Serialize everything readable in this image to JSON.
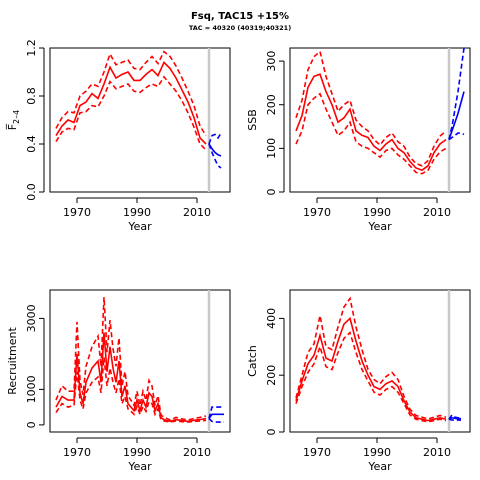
{
  "figure": {
    "title": "Fsq, TAC15 +15%",
    "subtitle": "TAC = 40320 (40319;40321)",
    "colors": {
      "historical": "#ff0000",
      "projection": "#0000ff",
      "marker": "#c8c8c8",
      "axis": "#000000"
    }
  },
  "chart_data": [
    {
      "id": "f",
      "type": "line",
      "title": "",
      "xlabel": "Year",
      "ylabel": "F̅ 2-4",
      "ylabel_main": "F̅",
      "ylabel_sub": "2–4",
      "xlim": [
        1961,
        2021
      ],
      "ylim": [
        0,
        1.2
      ],
      "xticks": [
        1970,
        1990,
        2010
      ],
      "yticks": [
        "0.0",
        "0.4",
        "0.8",
        "1.2"
      ],
      "marker_year": 2014,
      "historical": {
        "years": [
          1963,
          1965,
          1967,
          1969,
          1971,
          1973,
          1975,
          1977,
          1979,
          1981,
          1983,
          1985,
          1987,
          1989,
          1991,
          1993,
          1995,
          1997,
          1999,
          2001,
          2003,
          2005,
          2007,
          2009,
          2011,
          2013
        ],
        "median": [
          0.47,
          0.55,
          0.6,
          0.58,
          0.72,
          0.75,
          0.82,
          0.78,
          0.9,
          1.04,
          0.95,
          0.98,
          1.0,
          0.93,
          0.93,
          0.98,
          1.02,
          0.97,
          1.08,
          1.03,
          0.95,
          0.85,
          0.75,
          0.62,
          0.45,
          0.4
        ],
        "lower": [
          0.42,
          0.5,
          0.53,
          0.52,
          0.66,
          0.67,
          0.72,
          0.71,
          0.8,
          0.92,
          0.86,
          0.88,
          0.9,
          0.84,
          0.83,
          0.87,
          0.9,
          0.88,
          0.96,
          0.9,
          0.84,
          0.76,
          0.66,
          0.54,
          0.4,
          0.35
        ],
        "upper": [
          0.53,
          0.62,
          0.67,
          0.66,
          0.8,
          0.84,
          0.9,
          0.88,
          1.0,
          1.15,
          1.06,
          1.08,
          1.1,
          1.03,
          1.02,
          1.08,
          1.13,
          1.07,
          1.17,
          1.13,
          1.05,
          0.95,
          0.84,
          0.72,
          0.55,
          0.47
        ]
      },
      "projection": {
        "years": [
          2014,
          2015,
          2016,
          2017,
          2018
        ],
        "median": [
          0.4,
          0.36,
          0.33,
          0.31,
          0.3
        ],
        "lower": [
          0.4,
          0.33,
          0.27,
          0.22,
          0.2
        ],
        "upper": [
          0.4,
          0.47,
          0.48,
          0.45,
          0.49
        ]
      }
    },
    {
      "id": "ssb",
      "type": "line",
      "title": "",
      "xlabel": "Year",
      "ylabel": "SSB",
      "xlim": [
        1961,
        2021
      ],
      "ylim": [
        0,
        330
      ],
      "xticks": [
        1970,
        1990,
        2010
      ],
      "yticks": [
        "0",
        "100",
        "200",
        "300"
      ],
      "marker_year": 2014,
      "historical": {
        "years": [
          1963,
          1965,
          1967,
          1969,
          1971,
          1973,
          1975,
          1977,
          1979,
          1981,
          1983,
          1985,
          1987,
          1989,
          1991,
          1993,
          1995,
          1997,
          1999,
          2001,
          2003,
          2005,
          2007,
          2009,
          2011,
          2013
        ],
        "median": [
          140,
          175,
          240,
          265,
          270,
          230,
          200,
          160,
          170,
          190,
          140,
          130,
          125,
          105,
          95,
          110,
          120,
          100,
          90,
          70,
          55,
          50,
          60,
          90,
          110,
          120
        ],
        "lower": [
          110,
          140,
          200,
          215,
          225,
          190,
          160,
          130,
          140,
          160,
          115,
          105,
          100,
          90,
          80,
          95,
          100,
          85,
          75,
          60,
          45,
          42,
          50,
          75,
          92,
          100
        ],
        "upper": [
          170,
          210,
          280,
          310,
          322,
          265,
          225,
          185,
          200,
          210,
          165,
          150,
          140,
          120,
          108,
          125,
          135,
          115,
          105,
          80,
          65,
          60,
          72,
          105,
          128,
          140
        ]
      },
      "projection": {
        "years": [
          2014,
          2015,
          2016,
          2017,
          2018,
          2019
        ],
        "median": [
          120,
          140,
          160,
          180,
          205,
          230
        ],
        "lower": [
          120,
          125,
          130,
          135,
          135,
          132
        ],
        "upper": [
          120,
          150,
          190,
          230,
          280,
          330
        ]
      }
    },
    {
      "id": "recruitment",
      "type": "line",
      "title": "",
      "xlabel": "Year",
      "ylabel": "Recruitment",
      "xlim": [
        1961,
        2021
      ],
      "ylim": [
        -200,
        3800
      ],
      "xticks": [
        1970,
        1990,
        2010
      ],
      "yticks": [
        "0",
        "1000",
        "3000"
      ],
      "ytick_values": [
        0,
        1000,
        3000
      ],
      "marker_year": 2014,
      "historical": {
        "years": [
          1963,
          1965,
          1967,
          1969,
          1970,
          1971,
          1972,
          1973,
          1975,
          1977,
          1978,
          1979,
          1980,
          1981,
          1982,
          1983,
          1984,
          1985,
          1986,
          1987,
          1988,
          1989,
          1990,
          1991,
          1992,
          1993,
          1994,
          1995,
          1996,
          1997,
          1998,
          1999,
          2001,
          2003,
          2005,
          2007,
          2009,
          2011,
          2013
        ],
        "median": [
          500,
          800,
          700,
          700,
          2000,
          900,
          600,
          1200,
          1600,
          1800,
          1200,
          2600,
          1500,
          2200,
          1600,
          1200,
          1800,
          800,
          1100,
          600,
          500,
          400,
          700,
          400,
          700,
          500,
          900,
          800,
          400,
          600,
          200,
          150,
          100,
          150,
          120,
          100,
          130,
          150,
          180
        ],
        "lower": [
          350,
          600,
          500,
          550,
          1500,
          700,
          450,
          900,
          1200,
          1350,
          900,
          1900,
          1100,
          1600,
          1200,
          900,
          1300,
          600,
          800,
          450,
          380,
          300,
          520,
          300,
          520,
          380,
          650,
          600,
          300,
          450,
          150,
          110,
          80,
          110,
          90,
          80,
          100,
          110,
          130
        ],
        "upper": [
          700,
          1100,
          950,
          950,
          2900,
          1250,
          850,
          1650,
          2200,
          2500,
          1650,
          3600,
          2050,
          2950,
          2150,
          1650,
          2450,
          1100,
          1500,
          820,
          690,
          550,
          950,
          550,
          950,
          690,
          1250,
          1100,
          550,
          820,
          280,
          210,
          140,
          210,
          170,
          140,
          180,
          210,
          250
        ]
      },
      "projection": {
        "years": [
          2014,
          2015,
          2016,
          2017,
          2018,
          2019
        ],
        "median": [
          180,
          300,
          300,
          300,
          300,
          300
        ],
        "lower": [
          180,
          100,
          80,
          80,
          80,
          80
        ],
        "upper": [
          180,
          500,
          500,
          500,
          500,
          500
        ]
      }
    },
    {
      "id": "catch",
      "type": "line",
      "title": "",
      "xlabel": "Year",
      "ylabel": "Catch",
      "xlim": [
        1961,
        2021
      ],
      "ylim": [
        0,
        500
      ],
      "xticks": [
        1970,
        1990,
        2010
      ],
      "yticks": [
        "0",
        "200",
        "400"
      ],
      "marker_year": 2014,
      "historical": {
        "years": [
          1963,
          1965,
          1967,
          1969,
          1971,
          1973,
          1975,
          1977,
          1979,
          1981,
          1983,
          1985,
          1987,
          1989,
          1991,
          1993,
          1995,
          1997,
          1999,
          2001,
          2003,
          2005,
          2007,
          2009,
          2011,
          2013
        ],
        "median": [
          110,
          180,
          240,
          270,
          340,
          260,
          250,
          320,
          380,
          400,
          320,
          250,
          200,
          160,
          150,
          170,
          180,
          160,
          110,
          70,
          50,
          45,
          40,
          45,
          50,
          45
        ],
        "lower": [
          100,
          160,
          210,
          240,
          300,
          230,
          220,
          280,
          330,
          350,
          280,
          220,
          180,
          140,
          130,
          150,
          160,
          140,
          100,
          60,
          45,
          40,
          36,
          40,
          45,
          40
        ],
        "upper": [
          120,
          200,
          280,
          310,
          410,
          300,
          290,
          370,
          440,
          470,
          370,
          290,
          220,
          185,
          170,
          195,
          210,
          185,
          125,
          80,
          58,
          52,
          46,
          52,
          58,
          52
        ]
      },
      "projection": {
        "years": [
          2014,
          2015,
          2016,
          2017,
          2018
        ],
        "median": [
          45,
          50,
          48,
          46,
          48
        ],
        "lower": [
          45,
          42,
          42,
          42,
          42
        ],
        "upper": [
          45,
          60,
          52,
          50,
          50
        ]
      }
    }
  ]
}
